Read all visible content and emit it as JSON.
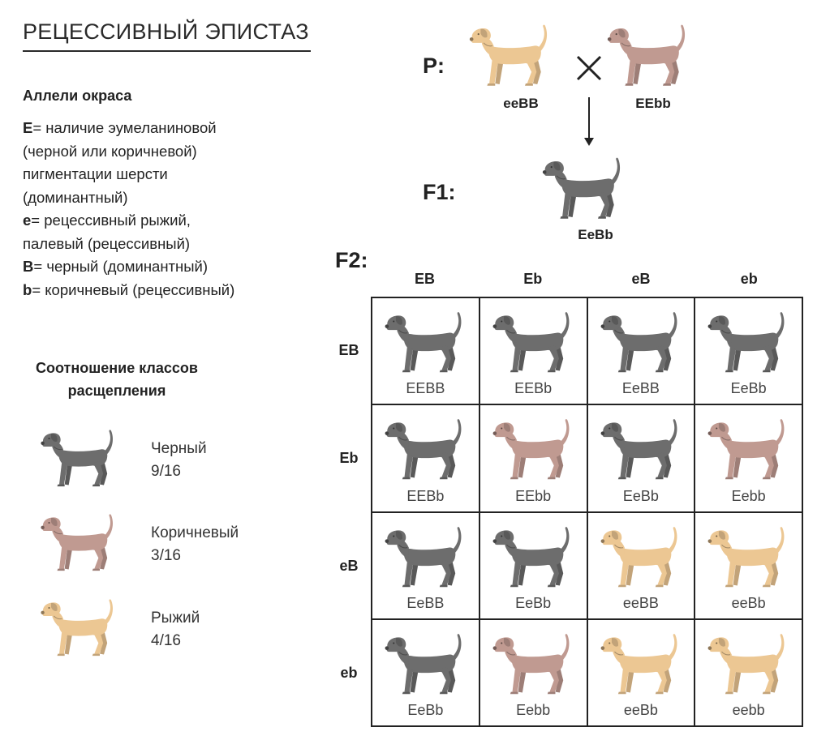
{
  "title": "РЕЦЕССИВНЫЙ ЭПИСТАЗ",
  "colors": {
    "black": "#6d6d6d",
    "brown": "#c09a91",
    "red": "#ecc793"
  },
  "alleles": {
    "heading": "Аллели окраса",
    "lines": [
      {
        "sym": "E",
        "text": "= наличие эумеланиновой"
      },
      {
        "sym": "",
        "text": "(черной или коричневой)"
      },
      {
        "sym": "",
        "text": "пигментации шерсти"
      },
      {
        "sym": "",
        "text": "(доминантный)"
      },
      {
        "sym": "e",
        "text": "= рецессивный рыжий,"
      },
      {
        "sym": "",
        "text": "палевый (рецессивный)"
      },
      {
        "sym": "B",
        "text": "= черный (доминантный)"
      },
      {
        "sym": "b",
        "text": "= коричневый (рецессивный)"
      }
    ]
  },
  "ratio": {
    "heading_line1": "Соотношение классов",
    "heading_line2": "расщепления",
    "classes": [
      {
        "name": "Черный",
        "ratio": "9/16",
        "color": "black"
      },
      {
        "name": "Коричневый",
        "ratio": "3/16",
        "color": "brown"
      },
      {
        "name": "Рыжий",
        "ratio": "4/16",
        "color": "red"
      }
    ]
  },
  "cross": {
    "p_label": "P:",
    "f1_label": "F1:",
    "f2_label": "F2:",
    "parent1": {
      "genotype": "eeBB",
      "color": "red"
    },
    "parent2": {
      "genotype": "EEbb",
      "color": "brown"
    },
    "f1": {
      "genotype": "EeBb",
      "color": "black"
    }
  },
  "punnett": {
    "col_headers": [
      "EB",
      "Eb",
      "eB",
      "eb"
    ],
    "row_headers": [
      "EB",
      "Eb",
      "eB",
      "eb"
    ],
    "cells": [
      [
        {
          "g": "EEBB",
          "c": "black"
        },
        {
          "g": "EEBb",
          "c": "black"
        },
        {
          "g": "EeBB",
          "c": "black"
        },
        {
          "g": "EeBb",
          "c": "black"
        }
      ],
      [
        {
          "g": "EEBb",
          "c": "black"
        },
        {
          "g": "EEbb",
          "c": "brown"
        },
        {
          "g": "EeBb",
          "c": "black"
        },
        {
          "g": "Eebb",
          "c": "brown"
        }
      ],
      [
        {
          "g": "EeBB",
          "c": "black"
        },
        {
          "g": "EeBb",
          "c": "black"
        },
        {
          "g": "eeBB",
          "c": "red"
        },
        {
          "g": "eeBb",
          "c": "red"
        }
      ],
      [
        {
          "g": "EeBb",
          "c": "black"
        },
        {
          "g": "Eebb",
          "c": "brown"
        },
        {
          "g": "eeBb",
          "c": "red"
        },
        {
          "g": "eebb",
          "c": "red"
        }
      ]
    ]
  }
}
